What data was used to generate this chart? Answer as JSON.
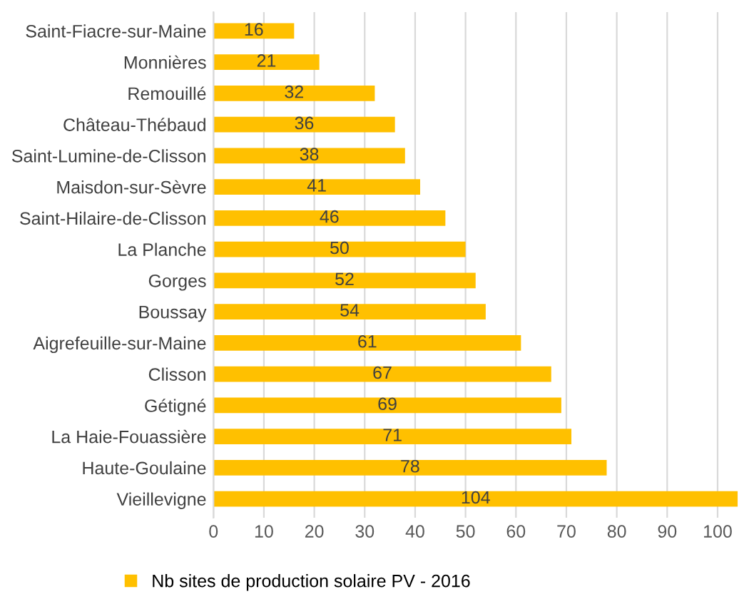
{
  "chart_data": {
    "type": "bar",
    "orientation": "horizontal",
    "categories": [
      "Saint-Fiacre-sur-Maine",
      "Monnières",
      "Remouillé",
      "Château-Thébaud",
      "Saint-Lumine-de-Clisson",
      "Maisdon-sur-Sèvre",
      "Saint-Hilaire-de-Clisson",
      "La Planche",
      "Gorges",
      "Boussay",
      "Aigrefeuille-sur-Maine",
      "Clisson",
      "Gétigné",
      "La Haie-Fouassière",
      "Haute-Goulaine",
      "Vieillevigne"
    ],
    "series": [
      {
        "name": "Nb sites de production solaire PV - 2016",
        "color": "#ffc000",
        "values": [
          16,
          21,
          32,
          36,
          38,
          41,
          46,
          50,
          52,
          54,
          61,
          67,
          69,
          71,
          78,
          104
        ]
      }
    ],
    "xlim": [
      0,
      104
    ],
    "xticks": [
      0,
      10,
      20,
      30,
      40,
      50,
      60,
      70,
      80,
      90,
      100
    ],
    "grid": "x",
    "legend": "bottom",
    "data_labels": true
  }
}
